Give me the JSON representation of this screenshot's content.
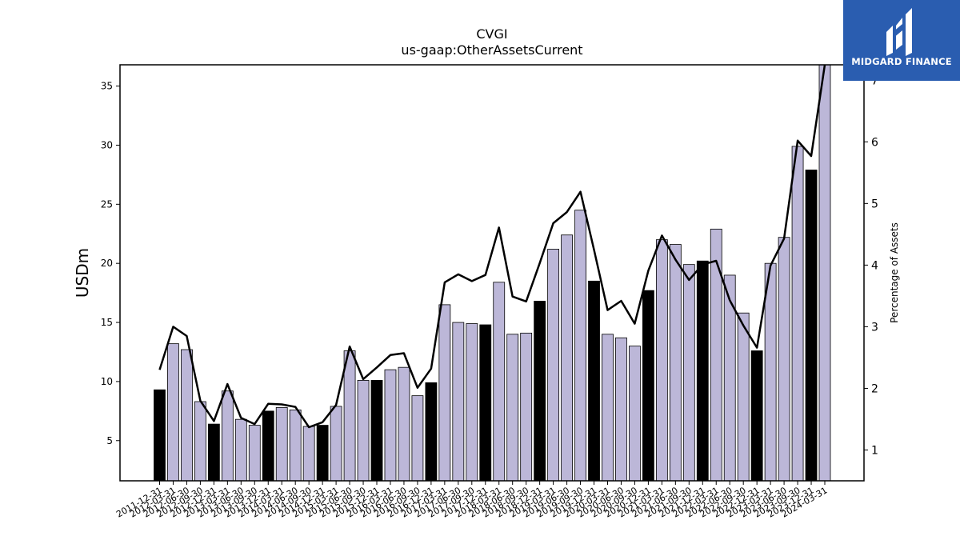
{
  "chart_data": {
    "type": "bar",
    "title": "CVGI",
    "subtitle": "us-gaap:OtherAssetsCurrent",
    "ylabel": "USDm",
    "y2label": "Percentage of Assets",
    "ylim": [
      1.6,
      36.8
    ],
    "y2lim": [
      0.5,
      7.25
    ],
    "yticks": [
      5,
      10,
      15,
      20,
      25,
      30,
      35
    ],
    "y2ticks": [
      1,
      2,
      3,
      4,
      5,
      6,
      7
    ],
    "categories": [
      "2011-12-31",
      "2012-03-31",
      "2012-06-30",
      "2012-09-30",
      "2012-12-31",
      "2013-03-31",
      "2013-06-30",
      "2013-09-30",
      "2013-12-31",
      "2014-03-31",
      "2014-06-30",
      "2014-09-30",
      "2014-12-31",
      "2015-03-31",
      "2015-06-30",
      "2015-09-30",
      "2015-12-31",
      "2016-03-31",
      "2016-06-30",
      "2016-09-30",
      "2016-12-31",
      "2017-03-31",
      "2017-06-30",
      "2017-09-30",
      "2017-12-31",
      "2018-03-31",
      "2018-06-30",
      "2018-09-30",
      "2018-12-31",
      "2019-03-31",
      "2019-06-30",
      "2019-09-30",
      "2019-12-31",
      "2020-03-31",
      "2020-06-30",
      "2020-09-30",
      "2020-12-31",
      "2021-03-31",
      "2021-06-30",
      "2021-09-30",
      "2021-12-31",
      "2022-03-31",
      "2022-06-30",
      "2022-09-30",
      "2022-12-31",
      "2023-03-31",
      "2023-06-30",
      "2023-09-30",
      "2023-12-31",
      "2024-03-31"
    ],
    "series": [
      {
        "type": "bar",
        "axis": "left",
        "values": [
          9.3,
          13.2,
          12.7,
          8.3,
          6.4,
          9.2,
          6.8,
          6.3,
          7.5,
          7.8,
          7.6,
          6.2,
          6.3,
          7.9,
          12.6,
          10.1,
          10.1,
          11.0,
          11.2,
          8.8,
          9.9,
          16.5,
          15.0,
          14.9,
          14.8,
          18.4,
          14.0,
          14.1,
          16.8,
          21.2,
          22.4,
          24.5,
          18.5,
          14.0,
          13.7,
          13.0,
          17.7,
          22.0,
          21.6,
          19.9,
          20.2,
          22.9,
          19.0,
          15.8,
          12.6,
          20.0,
          22.2,
          29.9,
          27.9,
          36.8
        ],
        "highlight": [
          true,
          false,
          false,
          false,
          true,
          false,
          false,
          false,
          true,
          false,
          false,
          false,
          true,
          false,
          false,
          false,
          true,
          false,
          false,
          false,
          true,
          false,
          false,
          false,
          true,
          false,
          false,
          false,
          true,
          false,
          false,
          false,
          true,
          false,
          false,
          false,
          true,
          false,
          false,
          false,
          true,
          false,
          false,
          false,
          true,
          false,
          false,
          false,
          true,
          false
        ]
      },
      {
        "type": "line",
        "axis": "right",
        "values": [
          2.3,
          3.0,
          2.85,
          1.8,
          1.47,
          2.07,
          1.52,
          1.42,
          1.75,
          1.74,
          1.7,
          1.37,
          1.45,
          1.73,
          2.68,
          2.15,
          2.34,
          2.54,
          2.57,
          2.01,
          2.32,
          3.72,
          3.85,
          3.74,
          3.84,
          4.61,
          3.49,
          3.41,
          4.03,
          4.68,
          4.86,
          5.19,
          4.25,
          3.27,
          3.42,
          3.05,
          3.91,
          4.48,
          4.09,
          3.76,
          4.01,
          4.07,
          3.43,
          3.02,
          2.66,
          3.99,
          4.43,
          6.02,
          5.77,
          7.25
        ]
      }
    ],
    "grid": false,
    "legend": "none",
    "colors": {
      "bar": "#bcb7d8",
      "bar_highlight": "#000000",
      "line": "#000000",
      "edge": "#000000"
    }
  },
  "logo": {
    "text": "MIDGARD FINANCE",
    "bg": "#2a5db0"
  }
}
